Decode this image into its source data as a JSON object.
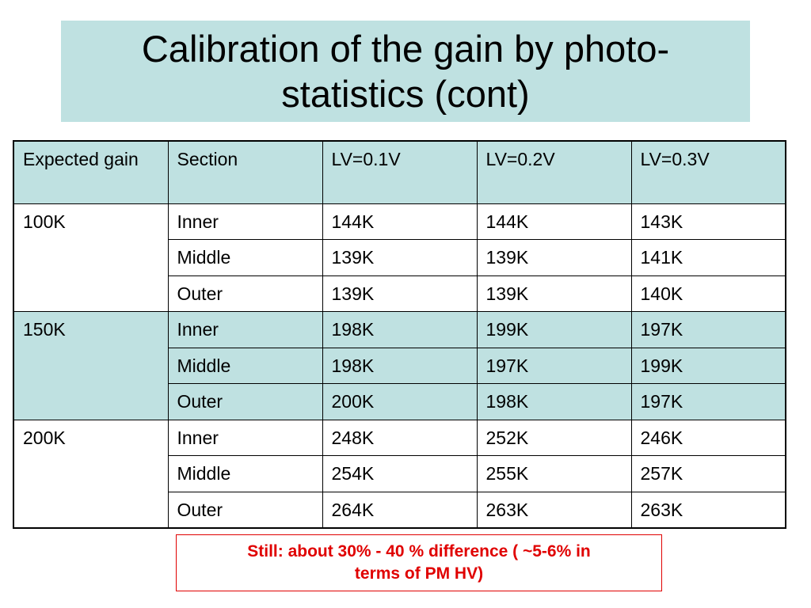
{
  "title": {
    "line1": "Calibration of the gain by photo-",
    "line2": "statistics (cont)"
  },
  "table": {
    "headers": [
      "Expected gain",
      "Section",
      "LV=0.1V",
      "LV=0.2V",
      "LV=0.3V"
    ],
    "groups": [
      {
        "expected_gain": "100K",
        "rows": [
          {
            "section": "Inner",
            "lv01": "144K",
            "lv02": "144K",
            "lv03": "143K"
          },
          {
            "section": "Middle",
            "lv01": "139K",
            "lv02": "139K",
            "lv03": "141K"
          },
          {
            "section": "Outer",
            "lv01": "139K",
            "lv02": "139K",
            "lv03": "140K"
          }
        ]
      },
      {
        "expected_gain": "150K",
        "rows": [
          {
            "section": "Inner",
            "lv01": "198K",
            "lv02": "199K",
            "lv03": "197K"
          },
          {
            "section": "Middle",
            "lv01": "198K",
            "lv02": "197K",
            "lv03": "199K"
          },
          {
            "section": "Outer",
            "lv01": "200K",
            "lv02": "198K",
            "lv03": "197K"
          }
        ]
      },
      {
        "expected_gain": "200K",
        "rows": [
          {
            "section": "Inner",
            "lv01": "248K",
            "lv02": "252K",
            "lv03": "246K"
          },
          {
            "section": "Middle",
            "lv01": "254K",
            "lv02": "255K",
            "lv03": "257K"
          },
          {
            "section": "Outer",
            "lv01": "264K",
            "lv02": "263K",
            "lv03": "263K"
          }
        ]
      }
    ]
  },
  "note": {
    "line1": "Still: about 30% - 40 % difference ( ~5-6% in",
    "line2": "terms of PM HV)"
  },
  "colors": {
    "shade": "#bfe1e1",
    "note_red": "#e00000"
  }
}
